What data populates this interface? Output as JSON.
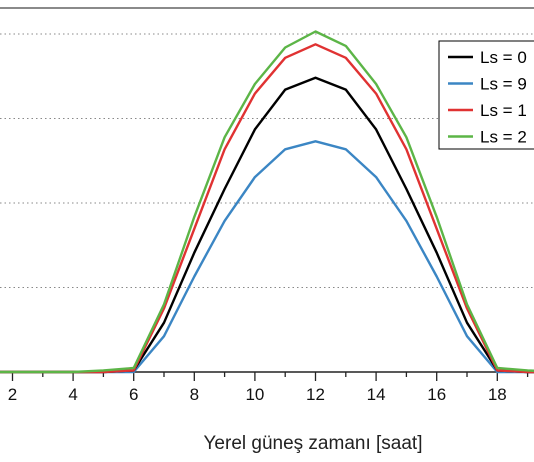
{
  "chart_data": {
    "type": "line",
    "xlabel": "Yerel güneş zamanı [saat]",
    "ylabel": "",
    "x": [
      0,
      1,
      2,
      3,
      4,
      5,
      6,
      7,
      8,
      9,
      10,
      11,
      12,
      13,
      14,
      15,
      16,
      17,
      18,
      19,
      20
    ],
    "xticks": [
      "2",
      "4",
      "6",
      "8",
      "10",
      "12",
      "14",
      "16",
      "18"
    ],
    "xtick_values": [
      2,
      4,
      6,
      8,
      10,
      12,
      14,
      16,
      18
    ],
    "xlim": [
      1.1,
      19.8
    ],
    "ylim": [
      0,
      4.4
    ],
    "grid": "horizontal-dotted",
    "legend_position": "top-right",
    "series": [
      {
        "name": "Ls = 0",
        "color": "#000000",
        "values": [
          0,
          0,
          0,
          0,
          0,
          0,
          0.02,
          0.62,
          1.5,
          2.3,
          3.05,
          3.55,
          3.7,
          3.55,
          3.05,
          2.3,
          1.5,
          0.62,
          0.02,
          0,
          0
        ]
      },
      {
        "name": "Ls = 9",
        "color": "#3b86c4",
        "values": [
          0,
          0,
          0,
          0,
          0,
          0,
          0,
          0.45,
          1.2,
          1.9,
          2.45,
          2.8,
          2.9,
          2.8,
          2.45,
          1.9,
          1.2,
          0.45,
          0,
          0,
          0
        ]
      },
      {
        "name": "Ls = 1",
        "color": "#e03232",
        "values": [
          0,
          0,
          0,
          0,
          0,
          0,
          0.02,
          0.8,
          1.8,
          2.8,
          3.5,
          3.95,
          4.12,
          3.95,
          3.5,
          2.8,
          1.8,
          0.8,
          0.02,
          0,
          0
        ]
      },
      {
        "name": "Ls = 2",
        "color": "#5cb547",
        "values": [
          0,
          0,
          0,
          0,
          0,
          0.02,
          0.05,
          0.85,
          1.95,
          2.95,
          3.62,
          4.08,
          4.28,
          4.1,
          3.62,
          2.95,
          1.95,
          0.85,
          0.05,
          0.02,
          0
        ]
      }
    ]
  }
}
